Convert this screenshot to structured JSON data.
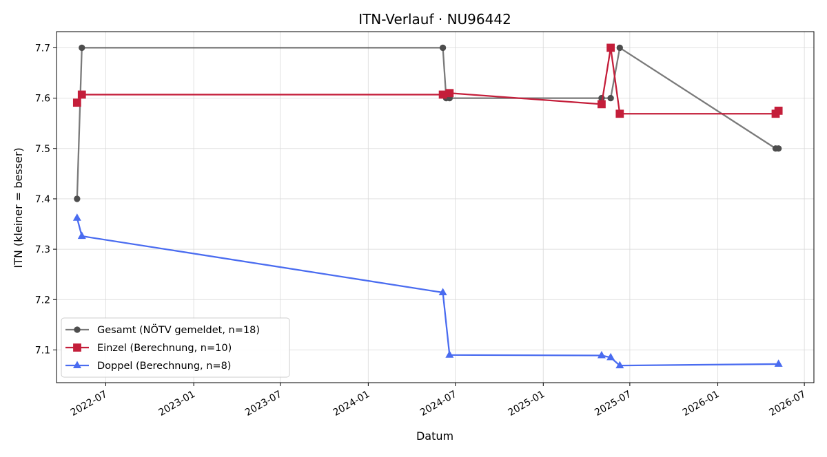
{
  "chart_data": {
    "type": "line",
    "title": "ITN-Verlauf · NU96442",
    "xlabel": "Datum",
    "ylabel": "ITN  (kleiner = besser)",
    "x_axis_type": "date",
    "xlim": [
      "2022-03-20",
      "2026-07-21"
    ],
    "ylim": [
      7.035,
      7.732
    ],
    "x_ticks": [
      "2022-07-01",
      "2023-01-01",
      "2023-07-01",
      "2024-01-01",
      "2024-07-01",
      "2025-01-01",
      "2025-07-01",
      "2026-01-01",
      "2026-07-01"
    ],
    "x_tick_labels": [
      "2022-07",
      "2023-01",
      "2023-07",
      "2024-01",
      "2024-07",
      "2025-01",
      "2025-07",
      "2026-01",
      "2026-07"
    ],
    "y_ticks": [
      7.1,
      7.2,
      7.3,
      7.4,
      7.5,
      7.6,
      7.7
    ],
    "y_tick_labels": [
      "7.1",
      "7.2",
      "7.3",
      "7.4",
      "7.5",
      "7.6",
      "7.7"
    ],
    "grid": true,
    "legend_position": "lower-left",
    "series": [
      {
        "name": "Gesamt (NÖTV gemeldet, n=18)",
        "color": "#4d4d4d",
        "marker": "circle",
        "points": [
          {
            "x": "2022-05-02",
            "y": 7.4
          },
          {
            "x": "2022-05-12",
            "y": 7.7
          },
          {
            "x": "2024-06-05",
            "y": 7.7
          },
          {
            "x": "2024-06-12",
            "y": 7.6
          },
          {
            "x": "2024-06-19",
            "y": 7.6
          },
          {
            "x": "2025-05-03",
            "y": 7.6
          },
          {
            "x": "2025-05-22",
            "y": 7.6
          },
          {
            "x": "2025-06-10",
            "y": 7.7
          },
          {
            "x": "2026-05-02",
            "y": 7.5
          },
          {
            "x": "2026-05-08",
            "y": 7.5
          }
        ]
      },
      {
        "name": "Einzel (Berechnung, n=10)",
        "color": "#c41e3a",
        "marker": "square",
        "points": [
          {
            "x": "2022-05-02",
            "y": 7.591
          },
          {
            "x": "2022-05-12",
            "y": 7.607
          },
          {
            "x": "2024-06-05",
            "y": 7.607
          },
          {
            "x": "2024-06-19",
            "y": 7.61
          },
          {
            "x": "2025-05-03",
            "y": 7.588
          },
          {
            "x": "2025-05-22",
            "y": 7.7
          },
          {
            "x": "2025-06-10",
            "y": 7.569
          },
          {
            "x": "2026-05-02",
            "y": 7.569
          },
          {
            "x": "2026-05-08",
            "y": 7.575
          }
        ]
      },
      {
        "name": "Doppel (Berechnung, n=8)",
        "color": "#4a6cf0",
        "marker": "triangle",
        "points": [
          {
            "x": "2022-05-02",
            "y": 7.362
          },
          {
            "x": "2022-05-12",
            "y": 7.326
          },
          {
            "x": "2024-06-05",
            "y": 7.214
          },
          {
            "x": "2024-06-19",
            "y": 7.09
          },
          {
            "x": "2025-05-03",
            "y": 7.089
          },
          {
            "x": "2025-05-22",
            "y": 7.085
          },
          {
            "x": "2025-06-10",
            "y": 7.069
          },
          {
            "x": "2026-05-08",
            "y": 7.072
          }
        ]
      }
    ]
  }
}
